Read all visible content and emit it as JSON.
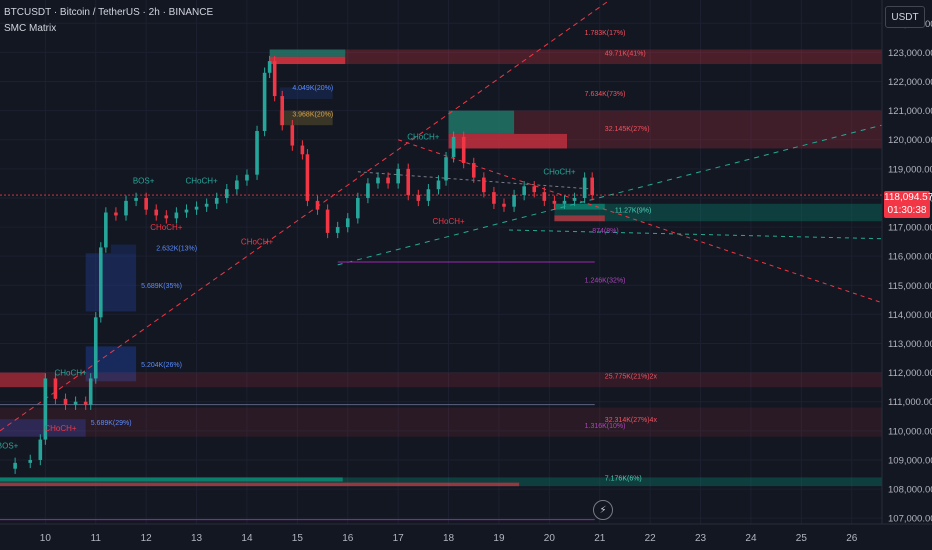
{
  "header": {
    "symbol_line": "BTCUSDT · Bitcoin / TetherUS · 2h · BINANCE",
    "indicator": "SMC Matrix"
  },
  "currency_label": "USDT",
  "price_tag": {
    "price": "118,094.57",
    "countdown": "01:30:38",
    "color": "#f23645"
  },
  "colors": {
    "up": "#26a69a",
    "down": "#f23645",
    "trend": "#f23645",
    "teal_line": "#22ab94",
    "purple": "#9c27b0",
    "zone_red": "#f23645",
    "zone_green": "#089981",
    "zone_blue": "#1e3a8a"
  },
  "icons": {
    "replay": "lightning-icon"
  },
  "chart_data": {
    "type": "candlestick",
    "y_ticks": [
      "124,000.00",
      "123,000.00",
      "122,000.00",
      "121,000.00",
      "120,000.00",
      "119,000.00",
      "118,000.00",
      "117,000.00",
      "116,000.00",
      "115,000.00",
      "114,000.00",
      "113,000.00",
      "112,000.00",
      "111,000.00",
      "110,000.00",
      "109,000.00",
      "108,000.00",
      "107,000.00"
    ],
    "x_ticks": [
      "10",
      "11",
      "12",
      "13",
      "14",
      "15",
      "16",
      "17",
      "18",
      "19",
      "20",
      "21",
      "22",
      "23",
      "24",
      "25",
      "26"
    ],
    "ylim": [
      106800,
      124800
    ],
    "xlim": [
      9.1,
      26.6
    ],
    "closes": [
      [
        9.1,
        108700
      ],
      [
        9.4,
        108900
      ],
      [
        9.7,
        109000
      ],
      [
        9.9,
        109700
      ],
      [
        10.0,
        111800
      ],
      [
        10.2,
        111100
      ],
      [
        10.4,
        110900
      ],
      [
        10.6,
        111000
      ],
      [
        10.8,
        110900
      ],
      [
        10.9,
        111800
      ],
      [
        11.0,
        113900
      ],
      [
        11.1,
        116300
      ],
      [
        11.2,
        117500
      ],
      [
        11.4,
        117400
      ],
      [
        11.6,
        117900
      ],
      [
        11.8,
        118000
      ],
      [
        12.0,
        117600
      ],
      [
        12.2,
        117400
      ],
      [
        12.4,
        117300
      ],
      [
        12.6,
        117500
      ],
      [
        12.8,
        117600
      ],
      [
        13.0,
        117700
      ],
      [
        13.2,
        117800
      ],
      [
        13.4,
        118000
      ],
      [
        13.6,
        118300
      ],
      [
        13.8,
        118600
      ],
      [
        14.0,
        118800
      ],
      [
        14.2,
        120300
      ],
      [
        14.35,
        122300
      ],
      [
        14.45,
        122700
      ],
      [
        14.55,
        121500
      ],
      [
        14.7,
        120500
      ],
      [
        14.9,
        119800
      ],
      [
        15.1,
        119500
      ],
      [
        15.2,
        117900
      ],
      [
        15.4,
        117600
      ],
      [
        15.6,
        116800
      ],
      [
        15.8,
        117000
      ],
      [
        16.0,
        117300
      ],
      [
        16.2,
        118000
      ],
      [
        16.4,
        118500
      ],
      [
        16.6,
        118700
      ],
      [
        16.8,
        118500
      ],
      [
        17.0,
        119000
      ],
      [
        17.2,
        118100
      ],
      [
        17.4,
        117900
      ],
      [
        17.6,
        118300
      ],
      [
        17.8,
        118600
      ],
      [
        17.95,
        119400
      ],
      [
        18.1,
        120100
      ],
      [
        18.3,
        119200
      ],
      [
        18.5,
        118700
      ],
      [
        18.7,
        118200
      ],
      [
        18.9,
        117800
      ],
      [
        19.1,
        117700
      ],
      [
        19.3,
        118100
      ],
      [
        19.5,
        118400
      ],
      [
        19.7,
        118200
      ],
      [
        19.9,
        117900
      ],
      [
        20.1,
        117800
      ],
      [
        20.3,
        117900
      ],
      [
        20.5,
        118000
      ],
      [
        20.7,
        118700
      ],
      [
        20.85,
        118100
      ]
    ],
    "choch_labels": [
      {
        "text": "CHoCH+",
        "at": [
          13.1,
          118500
        ],
        "color": "teal"
      },
      {
        "text": "BOS+",
        "at": [
          11.95,
          118500
        ],
        "color": "teal"
      },
      {
        "text": "CHoCH+",
        "at": [
          12.4,
          116900
        ],
        "color": "red"
      },
      {
        "text": "CHoCH+",
        "at": [
          14.2,
          116400
        ],
        "color": "red"
      },
      {
        "text": "CHoCH+",
        "at": [
          17.5,
          120000
        ],
        "color": "teal"
      },
      {
        "text": "CHoCH+",
        "at": [
          18.0,
          117100
        ],
        "color": "red"
      },
      {
        "text": "CHoCH+",
        "at": [
          20.2,
          118800
        ],
        "color": "teal"
      },
      {
        "text": "CHoCH+",
        "at": [
          10.5,
          111900
        ],
        "color": "teal"
      },
      {
        "text": "CHoCH+",
        "at": [
          10.3,
          110000
        ],
        "color": "red"
      },
      {
        "text": "BOS+",
        "at": [
          9.25,
          109400
        ],
        "color": "teal"
      }
    ],
    "annotations": [
      {
        "text": "1.783K(17%)",
        "at": [
          20.7,
          123600
        ],
        "color": "red"
      },
      {
        "text": "49.71K(41%)",
        "at": [
          21.1,
          122900
        ],
        "color": "red"
      },
      {
        "text": "4.049K(20%)",
        "at": [
          14.9,
          121700
        ],
        "color": "blue"
      },
      {
        "text": "3.968K(20%)",
        "at": [
          14.9,
          120800
        ],
        "color": "orange"
      },
      {
        "text": "7.634K(73%)",
        "at": [
          20.7,
          121500
        ],
        "color": "red"
      },
      {
        "text": "32.145K(27%)",
        "at": [
          21.1,
          120300
        ],
        "color": "red"
      },
      {
        "text": "11.27K(9%)",
        "at": [
          21.3,
          117500
        ],
        "color": "teal"
      },
      {
        "text": "874(8%)",
        "at": [
          20.85,
          116800
        ],
        "color": "purple"
      },
      {
        "text": "2.632K(13%)",
        "at": [
          12.2,
          116200
        ],
        "color": "blue"
      },
      {
        "text": "1.246K(32%)",
        "at": [
          20.7,
          115100
        ],
        "color": "purple"
      },
      {
        "text": "5.689K(35%)",
        "at": [
          11.9,
          114900
        ],
        "color": "blue"
      },
      {
        "text": "5.204K(26%)",
        "at": [
          11.9,
          112200
        ],
        "color": "blue"
      },
      {
        "text": "25.775K(21%)2x",
        "at": [
          21.1,
          111800
        ],
        "color": "red"
      },
      {
        "text": "5.689K(29%)",
        "at": [
          10.9,
          110200
        ],
        "color": "blue"
      },
      {
        "text": "32.314K(27%)4x",
        "at": [
          21.1,
          110300
        ],
        "color": "red"
      },
      {
        "text": "1.316K(10%)",
        "at": [
          20.7,
          110100
        ],
        "color": "purple"
      },
      {
        "text": "7.176K(6%)",
        "at": [
          21.1,
          108300
        ],
        "color": "teal"
      }
    ]
  }
}
